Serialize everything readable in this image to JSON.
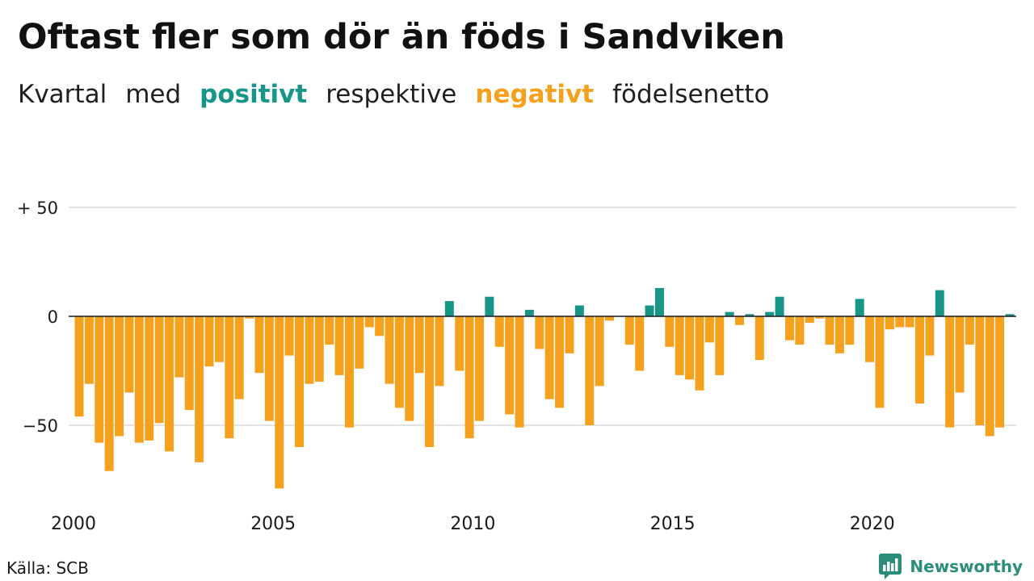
{
  "chart_data": {
    "type": "bar",
    "title": "Oftast fler som dör än föds i Sandviken",
    "subtitle": {
      "text_1": "Kvartal",
      "text_2": "med",
      "positive": "positivt",
      "text_3": "respektive",
      "negative": "negativt",
      "text_4": "födelsenetto"
    },
    "x": [
      "2000-Q1",
      "2000-Q2",
      "2000-Q3",
      "2000-Q4",
      "2001-Q1",
      "2001-Q2",
      "2001-Q3",
      "2001-Q4",
      "2002-Q1",
      "2002-Q2",
      "2002-Q3",
      "2002-Q4",
      "2003-Q1",
      "2003-Q2",
      "2003-Q3",
      "2003-Q4",
      "2004-Q1",
      "2004-Q2",
      "2004-Q3",
      "2004-Q4",
      "2005-Q1",
      "2005-Q2",
      "2005-Q3",
      "2005-Q4",
      "2006-Q1",
      "2006-Q2",
      "2006-Q3",
      "2006-Q4",
      "2007-Q1",
      "2007-Q2",
      "2007-Q3",
      "2007-Q4",
      "2008-Q1",
      "2008-Q2",
      "2008-Q3",
      "2008-Q4",
      "2009-Q1",
      "2009-Q2",
      "2009-Q3",
      "2009-Q4",
      "2010-Q1",
      "2010-Q2",
      "2010-Q3",
      "2010-Q4",
      "2011-Q1",
      "2011-Q2",
      "2011-Q3",
      "2011-Q4",
      "2012-Q1",
      "2012-Q2",
      "2012-Q3",
      "2012-Q4",
      "2013-Q1",
      "2013-Q2",
      "2013-Q3",
      "2013-Q4",
      "2014-Q1",
      "2014-Q2",
      "2014-Q3",
      "2014-Q4",
      "2015-Q1",
      "2015-Q2",
      "2015-Q3",
      "2015-Q4",
      "2016-Q1",
      "2016-Q2",
      "2016-Q3",
      "2016-Q4",
      "2017-Q1",
      "2017-Q2",
      "2017-Q3",
      "2017-Q4",
      "2018-Q1",
      "2018-Q2",
      "2018-Q3",
      "2018-Q4",
      "2019-Q1",
      "2019-Q2",
      "2019-Q3",
      "2019-Q4",
      "2020-Q1",
      "2020-Q2",
      "2020-Q3",
      "2020-Q4",
      "2021-Q1",
      "2021-Q2",
      "2021-Q3",
      "2021-Q4",
      "2022-Q1",
      "2022-Q2",
      "2022-Q3",
      "2022-Q4",
      "2023-Q1",
      "2023-Q2"
    ],
    "values": [
      -46,
      -31,
      -58,
      -71,
      -55,
      -35,
      -58,
      -57,
      -49,
      -62,
      -28,
      -43,
      -67,
      -23,
      -21,
      -56,
      -38,
      -1,
      -26,
      -48,
      -79,
      -18,
      -60,
      -31,
      -30,
      -13,
      -27,
      -51,
      -24,
      -5,
      -9,
      -31,
      -42,
      -48,
      -26,
      -60,
      -32,
      7,
      -25,
      -56,
      -48,
      9,
      -14,
      -45,
      -51,
      3,
      -15,
      -38,
      -42,
      -17,
      5,
      -50,
      -32,
      -2,
      0,
      -13,
      -25,
      5,
      13,
      -14,
      -27,
      -29,
      -34,
      -12,
      -27,
      2,
      -4,
      1,
      -20,
      2,
      9,
      -11,
      -13,
      -3,
      -1,
      -13,
      -17,
      -13,
      8,
      -21,
      -42,
      -6,
      -5,
      -5,
      -40,
      -18,
      12,
      -51,
      -35,
      -13,
      -50,
      -55,
      -51,
      1
    ],
    "xticks": [
      "2000",
      "2005",
      "2010",
      "2015",
      "2020"
    ],
    "yticks": [
      50,
      0,
      -50
    ],
    "ytick_labels": [
      "+ 50",
      "0",
      "−50"
    ],
    "ylim": [
      -80,
      50
    ],
    "grid": true,
    "colors": {
      "positive": "#179688",
      "negative": "#f5a11d"
    }
  },
  "source": "Källa: SCB",
  "brand": {
    "name": "Newsworthy",
    "icon": "newsworthy-chart-bubble-icon",
    "color": "#2a8c79"
  }
}
